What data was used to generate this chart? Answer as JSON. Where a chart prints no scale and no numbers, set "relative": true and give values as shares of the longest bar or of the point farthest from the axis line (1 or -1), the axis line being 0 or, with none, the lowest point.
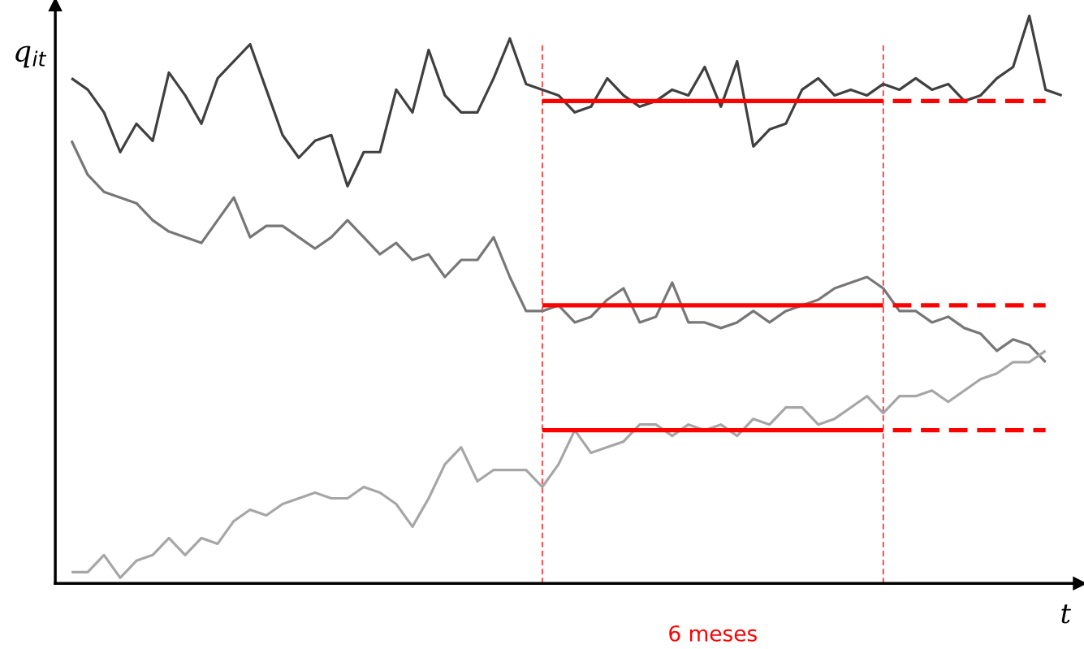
{
  "chart_data": {
    "type": "line",
    "relative": true,
    "ylabel": "q$_{it}$",
    "xlabel": "t",
    "annotations": [
      "6 meses"
    ],
    "legend": false,
    "marker": "none",
    "categories": [
      null,
      null,
      null,
      null,
      null,
      null,
      null,
      null,
      null,
      null,
      null,
      null,
      null,
      null,
      null,
      null,
      null,
      null,
      null,
      null,
      null,
      null,
      null,
      null,
      null,
      null,
      null,
      null,
      null,
      null,
      null,
      null,
      null,
      null,
      null,
      null,
      null,
      null,
      null,
      null,
      null,
      null,
      null,
      null,
      null,
      null,
      null,
      null,
      null,
      null,
      null,
      null,
      null,
      null,
      null,
      null,
      null,
      null,
      null,
      null,
      null,
      null
    ],
    "series": [
      {
        "color": "#404040",
        "values": [
          0.89,
          0.87,
          0.83,
          0.76,
          0.81,
          0.78,
          0.9,
          0.86,
          0.81,
          0.89,
          0.92,
          0.95,
          0.87,
          0.79,
          0.75,
          0.78,
          0.79,
          0.7,
          0.76,
          0.76,
          0.87,
          0.83,
          0.94,
          0.86,
          0.83,
          0.83,
          0.89,
          0.96,
          0.88,
          0.87,
          0.86,
          0.83,
          0.84,
          0.89,
          0.86,
          0.84,
          0.85,
          0.87,
          0.86,
          0.91,
          0.84,
          0.92,
          0.77,
          0.8,
          0.81,
          0.87,
          0.89,
          0.86,
          0.87,
          0.86,
          0.88,
          0.87,
          0.89,
          0.87,
          0.88,
          0.85,
          0.86,
          0.89,
          0.91,
          1.0,
          0.87,
          0.86
        ]
      },
      {
        "color": "#777777",
        "values": [
          0.78,
          0.72,
          0.69,
          0.68,
          0.67,
          0.64,
          0.62,
          0.61,
          0.6,
          0.64,
          0.68,
          0.61,
          0.63,
          0.63,
          0.61,
          0.59,
          0.61,
          0.64,
          0.61,
          0.58,
          0.6,
          0.57,
          0.58,
          0.54,
          0.57,
          0.57,
          0.61,
          0.54,
          0.48,
          0.48,
          0.49,
          0.46,
          0.47,
          0.5,
          0.52,
          0.46,
          0.47,
          0.53,
          0.46,
          0.46,
          0.45,
          0.46,
          0.48,
          0.46,
          0.48,
          0.49,
          0.5,
          0.52,
          0.53,
          0.54,
          0.52,
          0.48,
          0.48,
          0.46,
          0.47,
          0.45,
          0.44,
          0.41,
          0.43,
          0.42,
          0.39,
          null
        ]
      },
      {
        "color": "#a6a6a6",
        "values": [
          0.02,
          0.02,
          0.05,
          0.01,
          0.04,
          0.05,
          0.08,
          0.05,
          0.08,
          0.07,
          0.11,
          0.13,
          0.12,
          0.14,
          0.15,
          0.16,
          0.15,
          0.15,
          0.17,
          0.16,
          0.14,
          0.1,
          0.15,
          0.21,
          0.24,
          0.18,
          0.2,
          0.2,
          0.2,
          0.17,
          0.21,
          0.27,
          0.23,
          0.24,
          0.25,
          0.28,
          0.28,
          0.26,
          0.28,
          0.27,
          0.28,
          0.26,
          0.29,
          0.28,
          0.31,
          0.31,
          0.28,
          0.29,
          0.31,
          0.33,
          0.3,
          0.33,
          0.33,
          0.34,
          0.32,
          0.34,
          0.36,
          0.37,
          0.39,
          0.39,
          0.41,
          null
        ]
      },
      {
        "color": "#ff0000",
        "line_style": "solid",
        "values": [
          null,
          null,
          null,
          null,
          null,
          null,
          null,
          null,
          null,
          null,
          null,
          null,
          null,
          null,
          null,
          null,
          null,
          null,
          null,
          null,
          null,
          null,
          null,
          null,
          null,
          null,
          null,
          null,
          null,
          0.85,
          0.85,
          0.85,
          0.85,
          0.85,
          0.85,
          0.85,
          0.85,
          0.85,
          0.85,
          0.85,
          0.85,
          0.85,
          0.85,
          0.85,
          0.85,
          0.85,
          0.85,
          0.85,
          0.85,
          0.85,
          0.85,
          null,
          null,
          null,
          null,
          null,
          null,
          null,
          null,
          null,
          null,
          null
        ]
      },
      {
        "color": "#ff0000",
        "line_style": "dashed",
        "values": [
          null,
          null,
          null,
          null,
          null,
          null,
          null,
          null,
          null,
          null,
          null,
          null,
          null,
          null,
          null,
          null,
          null,
          null,
          null,
          null,
          null,
          null,
          null,
          null,
          null,
          null,
          null,
          null,
          null,
          null,
          null,
          null,
          null,
          null,
          null,
          null,
          null,
          null,
          null,
          null,
          null,
          null,
          null,
          null,
          null,
          null,
          null,
          null,
          null,
          null,
          0.85,
          0.85,
          0.85,
          0.85,
          0.85,
          0.85,
          0.85,
          0.85,
          0.85,
          0.85,
          0.85,
          null
        ]
      },
      {
        "color": "#ff0000",
        "line_style": "solid",
        "values": [
          null,
          null,
          null,
          null,
          null,
          null,
          null,
          null,
          null,
          null,
          null,
          null,
          null,
          null,
          null,
          null,
          null,
          null,
          null,
          null,
          null,
          null,
          null,
          null,
          null,
          null,
          null,
          null,
          null,
          0.49,
          0.49,
          0.49,
          0.49,
          0.49,
          0.49,
          0.49,
          0.49,
          0.49,
          0.49,
          0.49,
          0.49,
          0.49,
          0.49,
          0.49,
          0.49,
          0.49,
          0.49,
          0.49,
          0.49,
          0.49,
          0.49,
          null,
          null,
          null,
          null,
          null,
          null,
          null,
          null,
          null,
          null,
          null
        ]
      },
      {
        "color": "#ff0000",
        "line_style": "dashed",
        "values": [
          null,
          null,
          null,
          null,
          null,
          null,
          null,
          null,
          null,
          null,
          null,
          null,
          null,
          null,
          null,
          null,
          null,
          null,
          null,
          null,
          null,
          null,
          null,
          null,
          null,
          null,
          null,
          null,
          null,
          null,
          null,
          null,
          null,
          null,
          null,
          null,
          null,
          null,
          null,
          null,
          null,
          null,
          null,
          null,
          null,
          null,
          null,
          null,
          null,
          null,
          0.49,
          0.49,
          0.49,
          0.49,
          0.49,
          0.49,
          0.49,
          0.49,
          0.49,
          0.49,
          0.49,
          null
        ]
      },
      {
        "color": "#ff0000",
        "line_style": "solid",
        "values": [
          null,
          null,
          null,
          null,
          null,
          null,
          null,
          null,
          null,
          null,
          null,
          null,
          null,
          null,
          null,
          null,
          null,
          null,
          null,
          null,
          null,
          null,
          null,
          null,
          null,
          null,
          null,
          null,
          null,
          0.27,
          0.27,
          0.27,
          0.27,
          0.27,
          0.27,
          0.27,
          0.27,
          0.27,
          0.27,
          0.27,
          0.27,
          0.27,
          0.27,
          0.27,
          0.27,
          0.27,
          0.27,
          0.27,
          0.27,
          0.27,
          0.27,
          null,
          null,
          null,
          null,
          null,
          null,
          null,
          null,
          null,
          null,
          null
        ]
      },
      {
        "color": "#ff0000",
        "line_style": "dashed",
        "values": [
          null,
          null,
          null,
          null,
          null,
          null,
          null,
          null,
          null,
          null,
          null,
          null,
          null,
          null,
          null,
          null,
          null,
          null,
          null,
          null,
          null,
          null,
          null,
          null,
          null,
          null,
          null,
          null,
          null,
          null,
          null,
          null,
          null,
          null,
          null,
          null,
          null,
          null,
          null,
          null,
          null,
          null,
          null,
          null,
          null,
          null,
          null,
          null,
          null,
          null,
          0.27,
          0.27,
          0.27,
          0.27,
          0.27,
          0.27,
          0.27,
          0.27,
          0.27,
          0.27,
          0.27,
          null
        ]
      }
    ]
  }
}
